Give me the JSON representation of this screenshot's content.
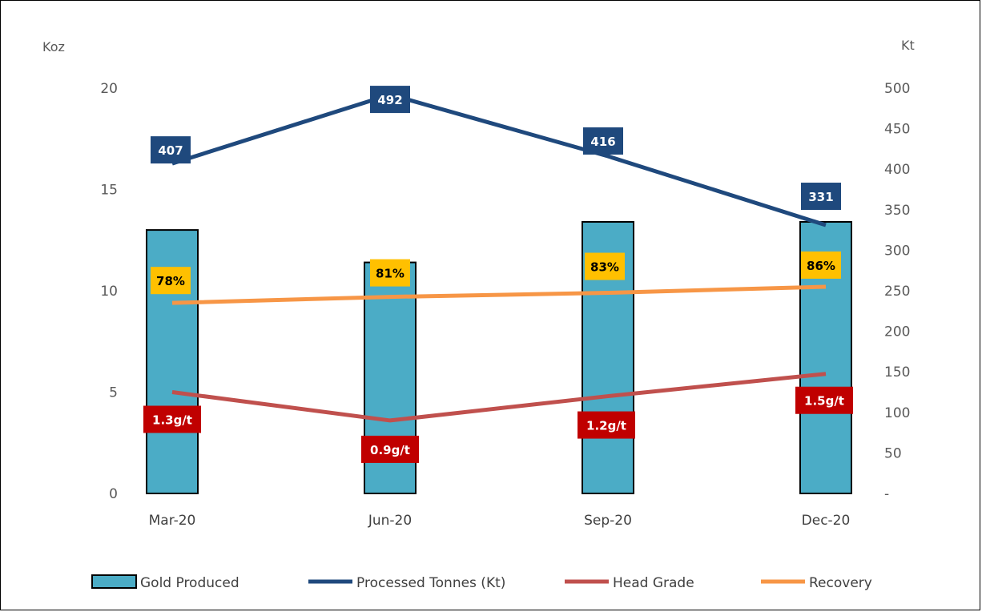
{
  "chart_data": {
    "type": "bar",
    "categories": [
      "Mar-20",
      "Jun-20",
      "Sep-20",
      "Dec-20"
    ],
    "left_axis": {
      "unit": "Koz",
      "min": 0,
      "max": 20,
      "step": 5,
      "ticks": [
        "0",
        "5",
        "10",
        "15",
        "20"
      ]
    },
    "right_axis": {
      "unit": "Kt",
      "min": 0,
      "max": 500,
      "step": 50,
      "ticks": [
        "-",
        "50",
        "100",
        "150",
        "200",
        "250",
        "300",
        "350",
        "400",
        "450",
        "500"
      ]
    },
    "series": [
      {
        "name": "Gold Produced",
        "type": "bar",
        "axis": "left",
        "values": [
          13.0,
          11.4,
          13.4,
          13.4
        ],
        "color": "#4BACC6"
      },
      {
        "name": "Processed Tonnes (Kt)",
        "type": "line",
        "axis": "right",
        "values": [
          407,
          492,
          416,
          331
        ],
        "labels": [
          "407",
          "492",
          "416",
          "331"
        ],
        "color": "#1F497D",
        "label_bg": "#1F497D",
        "label_color": "#ffffff"
      },
      {
        "name": "Head Grade",
        "type": "line",
        "axis": "left",
        "values": [
          5.0,
          3.6,
          4.8,
          5.9
        ],
        "labels": [
          "1.3g/t",
          "0.9g/t",
          "1.2g/t",
          "1.5g/t"
        ],
        "color": "#C0504D",
        "label_bg": "#C00000",
        "label_color": "#ffffff"
      },
      {
        "name": "Recovery",
        "type": "line",
        "axis": "left",
        "values": [
          9.4,
          9.7,
          9.9,
          10.2
        ],
        "labels": [
          "78%",
          "81%",
          "83%",
          "86%"
        ],
        "color": "#F79646",
        "label_bg": "#FFC000",
        "label_color": "#000000"
      }
    ],
    "legend": "bottom",
    "grid": false
  }
}
